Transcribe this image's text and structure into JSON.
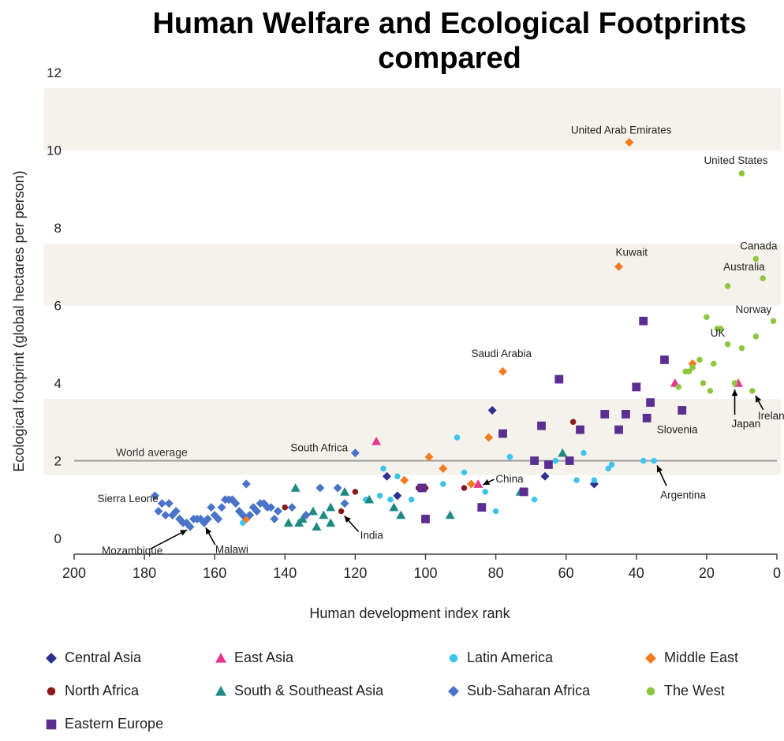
{
  "chart_data": {
    "type": "scatter",
    "title": "Human Welfare and Ecological Footprints compared",
    "xlabel": "Human development index rank",
    "ylabel": "Ecological footprint (global hectares per person)",
    "xlim": [
      200,
      0
    ],
    "ylim": [
      0,
      12
    ],
    "x_ticks": [
      "200",
      "180",
      "160",
      "140",
      "120",
      "100",
      "80",
      "60",
      "40",
      "20",
      "0"
    ],
    "y_ticks": [
      "0",
      "2",
      "4",
      "6",
      "8",
      "10",
      "12"
    ],
    "grid": "alternating horizontal bands",
    "reference_line": {
      "label": "World average",
      "y": 2.0
    },
    "legend_position": "bottom",
    "series": [
      {
        "name": "Central Asia",
        "marker": "diamond",
        "color": "#2e3192",
        "points": [
          [
            81,
            3.3
          ],
          [
            111,
            1.6
          ],
          [
            108,
            1.1
          ],
          [
            66,
            1.6
          ],
          [
            52,
            1.4
          ]
        ]
      },
      {
        "name": "East Asia",
        "marker": "triangle",
        "color": "#e8378f",
        "points": [
          [
            114,
            2.5
          ],
          [
            85,
            1.4
          ],
          [
            29,
            4.0
          ],
          [
            11,
            4.0
          ]
        ]
      },
      {
        "name": "Latin America",
        "marker": "circle",
        "color": "#3dc4ec",
        "points": [
          [
            91,
            2.6
          ],
          [
            76,
            2.1
          ],
          [
            63,
            2.0
          ],
          [
            55,
            2.2
          ],
          [
            48,
            1.8
          ],
          [
            47,
            1.9
          ],
          [
            38,
            2.0
          ],
          [
            35,
            2.0
          ],
          [
            112,
            1.8
          ],
          [
            108,
            1.6
          ],
          [
            104,
            1.0
          ],
          [
            95,
            1.4
          ],
          [
            89,
            1.7
          ],
          [
            83,
            1.2
          ],
          [
            80,
            0.7
          ],
          [
            69,
            1.0
          ],
          [
            57,
            1.5
          ],
          [
            52,
            1.5
          ],
          [
            117,
            1.0
          ],
          [
            113,
            1.1
          ],
          [
            110,
            1.0
          ],
          [
            152,
            0.4
          ]
        ]
      },
      {
        "name": "Middle East",
        "marker": "diamond",
        "color": "#f47b20",
        "points": [
          [
            42,
            10.2
          ],
          [
            45,
            7.0
          ],
          [
            78,
            4.3
          ],
          [
            82,
            2.6
          ],
          [
            99,
            2.1
          ],
          [
            95,
            1.8
          ],
          [
            106,
            1.5
          ],
          [
            87,
            1.4
          ],
          [
            151,
            0.5
          ],
          [
            24,
            4.5
          ]
        ]
      },
      {
        "name": "North Africa",
        "marker": "circle",
        "color": "#8b1a1a",
        "points": [
          [
            58,
            3.0
          ],
          [
            100,
            1.3
          ],
          [
            102,
            1.3
          ],
          [
            89,
            1.3
          ],
          [
            120,
            1.2
          ],
          [
            140,
            0.8
          ],
          [
            124,
            0.7
          ]
        ]
      },
      {
        "name": "South & Southeast Asia",
        "marker": "triangle",
        "color": "#1f8a84",
        "points": [
          [
            137,
            1.3
          ],
          [
            123,
            1.2
          ],
          [
            61,
            2.2
          ],
          [
            73,
            1.2
          ],
          [
            109,
            0.8
          ],
          [
            107,
            0.6
          ],
          [
            116,
            1.0
          ],
          [
            127,
            0.8
          ],
          [
            129,
            0.6
          ],
          [
            132,
            0.7
          ],
          [
            135,
            0.5
          ],
          [
            136,
            0.4
          ],
          [
            139,
            0.4
          ],
          [
            131,
            0.3
          ],
          [
            127,
            0.4
          ],
          [
            93,
            0.6
          ],
          [
            84,
            0.8
          ]
        ]
      },
      {
        "name": "Sub-Saharan Africa",
        "marker": "diamond",
        "color": "#4a74c9",
        "points": [
          [
            120,
            2.2
          ],
          [
            177,
            1.1
          ],
          [
            175,
            0.9
          ],
          [
            173,
            0.9
          ],
          [
            176,
            0.7
          ],
          [
            174,
            0.6
          ],
          [
            172,
            0.6
          ],
          [
            171,
            0.7
          ],
          [
            170,
            0.5
          ],
          [
            169,
            0.4
          ],
          [
            168,
            0.4
          ],
          [
            167,
            0.3
          ],
          [
            166,
            0.5
          ],
          [
            165,
            0.5
          ],
          [
            164,
            0.5
          ],
          [
            163,
            0.4
          ],
          [
            162,
            0.5
          ],
          [
            161,
            0.8
          ],
          [
            160,
            0.6
          ],
          [
            158,
            0.8
          ],
          [
            157,
            1.0
          ],
          [
            156,
            1.0
          ],
          [
            155,
            1.0
          ],
          [
            154,
            0.9
          ],
          [
            153,
            0.7
          ],
          [
            151,
            1.4
          ],
          [
            149,
            0.8
          ],
          [
            148,
            0.7
          ],
          [
            147,
            0.9
          ],
          [
            146,
            0.9
          ],
          [
            145,
            0.8
          ],
          [
            144,
            0.8
          ],
          [
            143,
            0.5
          ],
          [
            142,
            0.7
          ],
          [
            138,
            0.8
          ],
          [
            134,
            0.6
          ],
          [
            130,
            1.3
          ],
          [
            125,
            1.3
          ],
          [
            123,
            0.9
          ],
          [
            159,
            0.5
          ],
          [
            152,
            0.6
          ],
          [
            150,
            0.6
          ]
        ]
      },
      {
        "name": "The West",
        "marker": "circle",
        "color": "#8dc63f",
        "points": [
          [
            10,
            9.4
          ],
          [
            6,
            7.2
          ],
          [
            4,
            6.7
          ],
          [
            14,
            6.5
          ],
          [
            1,
            5.6
          ],
          [
            20,
            5.7
          ],
          [
            17,
            5.4
          ],
          [
            16,
            5.4
          ],
          [
            6,
            5.2
          ],
          [
            10,
            4.9
          ],
          [
            14,
            5.0
          ],
          [
            18,
            4.5
          ],
          [
            25,
            4.3
          ],
          [
            26,
            4.3
          ],
          [
            21,
            4.0
          ],
          [
            12,
            4.0
          ],
          [
            7,
            3.8
          ],
          [
            19,
            3.8
          ],
          [
            24,
            4.4
          ],
          [
            22,
            4.6
          ],
          [
            28,
            3.9
          ]
        ]
      },
      {
        "name": "Eastern Europe",
        "marker": "square",
        "color": "#5b2e91",
        "points": [
          [
            38,
            5.6
          ],
          [
            32,
            4.6
          ],
          [
            62,
            4.1
          ],
          [
            40,
            3.9
          ],
          [
            36,
            3.5
          ],
          [
            27,
            3.3
          ],
          [
            49,
            3.2
          ],
          [
            43,
            3.2
          ],
          [
            37,
            3.1
          ],
          [
            78,
            2.7
          ],
          [
            67,
            2.9
          ],
          [
            56,
            2.8
          ],
          [
            45,
            2.8
          ],
          [
            69,
            2.0
          ],
          [
            65,
            1.9
          ],
          [
            59,
            2.0
          ],
          [
            101,
            1.3
          ],
          [
            72,
            1.2
          ],
          [
            84,
            0.8
          ],
          [
            100,
            0.5
          ]
        ]
      }
    ],
    "annotations": [
      {
        "text": "United Arab Emirates",
        "x": 42,
        "y": 10.2
      },
      {
        "text": "United States",
        "x": 10,
        "y": 9.4
      },
      {
        "text": "Kuwait",
        "x": 45,
        "y": 7.0
      },
      {
        "text": "Canada",
        "x": 6,
        "y": 7.2
      },
      {
        "text": "Australia",
        "x": 4,
        "y": 6.7
      },
      {
        "text": "Norway",
        "x": 1,
        "y": 5.6
      },
      {
        "text": "UK",
        "x": 16,
        "y": 5.4
      },
      {
        "text": "Saudi Arabia",
        "x": 78,
        "y": 4.3
      },
      {
        "text": "Japan",
        "x": 12,
        "y": 4.0
      },
      {
        "text": "Ireland",
        "x": 7,
        "y": 3.8
      },
      {
        "text": "Slovenia",
        "x": 27,
        "y": 3.3
      },
      {
        "text": "South Africa",
        "x": 120,
        "y": 2.2
      },
      {
        "text": "China",
        "x": 85,
        "y": 1.4
      },
      {
        "text": "Argentina",
        "x": 35,
        "y": 2.0
      },
      {
        "text": "Sierra Leone",
        "x": 177,
        "y": 1.1
      },
      {
        "text": "Mozambique",
        "x": 167,
        "y": 0.3
      },
      {
        "text": "Malawi",
        "x": 163,
        "y": 0.4
      },
      {
        "text": "India",
        "x": 124,
        "y": 0.7
      }
    ]
  }
}
